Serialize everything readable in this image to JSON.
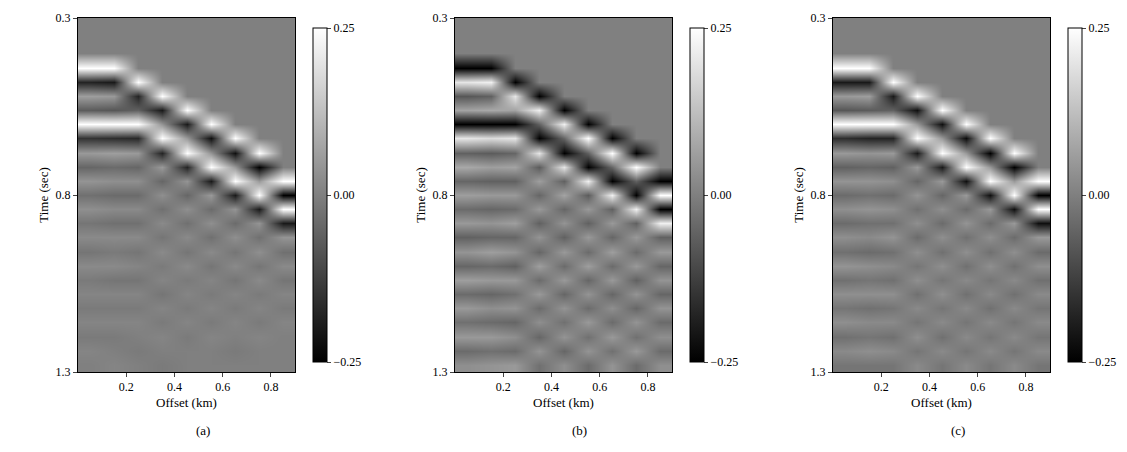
{
  "chart_data": [
    {
      "type": "heatmap",
      "caption": "(a)",
      "x_label": "Offset (km)",
      "y_label": "Time (sec)",
      "xlim": [
        0,
        0.9
      ],
      "ylim": [
        1.3,
        0.3
      ],
      "xticks": [
        0.2,
        0.4,
        0.6,
        0.8
      ],
      "yticks": [
        0.3,
        0.8,
        1.3
      ],
      "x": [
        0.05,
        0.15,
        0.25,
        0.35,
        0.45,
        0.55,
        0.65,
        0.75,
        0.85
      ],
      "y": [
        0.32,
        0.36,
        0.4,
        0.44,
        0.48,
        0.52,
        0.56,
        0.6,
        0.64,
        0.68,
        0.72,
        0.76,
        0.8,
        0.84,
        0.88,
        0.92,
        0.96,
        1.0,
        1.04,
        1.08,
        1.12,
        1.16,
        1.2,
        1.24,
        1.28
      ],
      "z": [
        [
          0,
          0,
          0,
          0.25,
          -0.18,
          0.06,
          -0.07,
          0.25,
          -0.15,
          0.05,
          -0.05,
          0.04,
          -0.03,
          0.03,
          -0.02,
          0.02,
          -0.02,
          0.02,
          -0.01,
          0.01,
          -0.01,
          0.01,
          -0.01,
          0.01,
          0
        ],
        [
          0,
          0,
          0,
          0.25,
          -0.2,
          0.05,
          -0.08,
          0.25,
          -0.16,
          0.06,
          -0.04,
          0.03,
          -0.04,
          0.02,
          -0.03,
          0.02,
          -0.01,
          0.02,
          -0.02,
          0.01,
          -0.01,
          0.01,
          -0.01,
          0,
          0.01
        ],
        [
          0,
          0,
          0,
          0,
          0.25,
          -0.18,
          -0.06,
          0.25,
          -0.17,
          0.05,
          -0.05,
          0.03,
          -0.04,
          0.02,
          -0.03,
          0.02,
          -0.02,
          0.01,
          -0.02,
          0.01,
          -0.01,
          0.01,
          0,
          -0.01,
          0
        ],
        [
          0,
          0,
          0,
          0,
          0,
          0.25,
          -0.2,
          0.04,
          0.25,
          -0.18,
          0.05,
          -0.05,
          0.03,
          -0.03,
          0.02,
          -0.02,
          0.02,
          -0.01,
          0.01,
          -0.02,
          0.01,
          -0.01,
          0.01,
          0,
          -0.01
        ],
        [
          0,
          0,
          0,
          0,
          0,
          0,
          0.25,
          -0.2,
          0.05,
          0.25,
          -0.18,
          0.04,
          -0.05,
          0.03,
          -0.03,
          0.02,
          -0.02,
          0.02,
          -0.01,
          0.01,
          -0.01,
          0.01,
          -0.01,
          0,
          0
        ],
        [
          0,
          0,
          0,
          0,
          0,
          0,
          0,
          0.25,
          -0.22,
          0.04,
          0.25,
          -0.2,
          0.05,
          -0.04,
          0.03,
          -0.03,
          0.02,
          -0.02,
          0.01,
          -0.01,
          0.01,
          -0.01,
          0.01,
          0,
          0
        ],
        [
          0,
          0,
          0,
          0,
          0,
          0,
          0,
          0,
          0.25,
          -0.22,
          0.05,
          0.25,
          -0.2,
          0.04,
          -0.04,
          0.03,
          -0.02,
          0.02,
          -0.02,
          0.01,
          -0.01,
          0.01,
          0,
          -0.01,
          0
        ],
        [
          0,
          0,
          0,
          0,
          0,
          0,
          0,
          0,
          0,
          0.25,
          -0.25,
          0.05,
          0.25,
          -0.2,
          0.04,
          -0.03,
          0.03,
          -0.02,
          0.02,
          -0.01,
          0.01,
          -0.01,
          0.01,
          0,
          0
        ],
        [
          0,
          0,
          0,
          0,
          0,
          0,
          0,
          0,
          0,
          0,
          0,
          0.25,
          -0.25,
          0.25,
          -0.2,
          0.04,
          -0.03,
          0.02,
          -0.02,
          0.01,
          -0.01,
          0.01,
          0,
          0,
          0
        ]
      ],
      "color_range": [
        -0.25,
        0.25
      ],
      "color_ticks": [
        {
          "value": -0.25,
          "label": "−0.25"
        },
        {
          "value": 0,
          "label": "0.00"
        },
        0.25
      ]
    },
    {
      "type": "heatmap",
      "caption": "(b)",
      "x_label": "Offset (km)",
      "y_label": "Time (sec)",
      "xlim": [
        0,
        0.9
      ],
      "ylim": [
        1.3,
        0.3
      ],
      "xticks": [
        0.2,
        0.4,
        0.6,
        0.8
      ],
      "yticks": [
        0.3,
        0.8,
        1.3
      ],
      "x": [
        0.05,
        0.15,
        0.25,
        0.35,
        0.45,
        0.55,
        0.65,
        0.75,
        0.85
      ],
      "y": [
        0.32,
        0.36,
        0.4,
        0.44,
        0.48,
        0.52,
        0.56,
        0.6,
        0.64,
        0.68,
        0.72,
        0.76,
        0.8,
        0.84,
        0.88,
        0.92,
        0.96,
        1.0,
        1.04,
        1.08,
        1.12,
        1.16,
        1.2,
        1.24,
        1.28
      ],
      "z": [
        [
          0,
          0,
          0,
          -0.25,
          0.2,
          -0.08,
          0.07,
          -0.25,
          0.2,
          -0.06,
          0.08,
          -0.05,
          0.06,
          -0.04,
          0.05,
          -0.06,
          0.04,
          -0.05,
          0.06,
          -0.04,
          0.05,
          -0.03,
          0.05,
          -0.04,
          0.03
        ],
        [
          0,
          0,
          0,
          -0.25,
          0.22,
          -0.06,
          0.08,
          -0.25,
          0.18,
          -0.07,
          0.06,
          -0.06,
          0.05,
          -0.05,
          0.04,
          -0.05,
          0.06,
          -0.04,
          0.05,
          -0.05,
          0.03,
          -0.04,
          0.05,
          -0.03,
          0.04
        ],
        [
          0,
          0,
          0,
          0,
          -0.25,
          0.2,
          0.07,
          -0.25,
          0.2,
          -0.05,
          0.07,
          -0.06,
          0.05,
          -0.04,
          0.06,
          -0.05,
          0.04,
          -0.06,
          0.05,
          -0.03,
          0.04,
          -0.05,
          0.03,
          -0.04,
          0.05
        ],
        [
          0,
          0,
          0,
          0,
          0,
          -0.25,
          0.22,
          -0.06,
          -0.25,
          0.2,
          -0.07,
          0.06,
          -0.05,
          0.05,
          -0.06,
          0.04,
          -0.05,
          0.06,
          -0.04,
          0.05,
          -0.04,
          0.03,
          -0.05,
          0.04,
          -0.03
        ],
        [
          0,
          0,
          0,
          0,
          0,
          0,
          -0.25,
          0.22,
          -0.05,
          -0.25,
          0.2,
          -0.06,
          0.07,
          -0.05,
          0.04,
          -0.06,
          0.05,
          -0.04,
          0.05,
          -0.05,
          0.04,
          -0.03,
          0.04,
          -0.05,
          0.03
        ],
        [
          0,
          0,
          0,
          0,
          0,
          0,
          0,
          -0.25,
          0.25,
          -0.06,
          -0.25,
          0.22,
          -0.07,
          0.05,
          -0.06,
          0.05,
          -0.04,
          0.06,
          -0.05,
          0.04,
          -0.04,
          0.05,
          -0.03,
          0.04,
          -0.04
        ],
        [
          0,
          0,
          0,
          0,
          0,
          0,
          0,
          0,
          -0.25,
          0.25,
          -0.05,
          -0.25,
          0.22,
          -0.06,
          0.05,
          -0.05,
          0.06,
          -0.04,
          0.05,
          -0.05,
          0.03,
          -0.04,
          0.05,
          -0.03,
          0.04
        ],
        [
          0,
          0,
          0,
          0,
          0,
          0,
          0,
          0,
          0,
          -0.25,
          0.25,
          -0.06,
          -0.25,
          0.22,
          -0.06,
          0.05,
          -0.04,
          0.05,
          -0.06,
          0.04,
          -0.05,
          0.04,
          -0.03,
          0.05,
          -0.04
        ],
        [
          0,
          0,
          0,
          0,
          0,
          0,
          0,
          0,
          0,
          0,
          0,
          -0.25,
          0.25,
          -0.25,
          0.22,
          -0.06,
          0.05,
          -0.05,
          0.04,
          -0.05,
          0.04,
          -0.04,
          0.03,
          -0.04,
          0.03
        ]
      ],
      "color_range": [
        -0.25,
        0.25
      ],
      "color_ticks": [
        {
          "value": -0.25,
          "label": "−0.25"
        },
        {
          "value": 0,
          "label": "0.00"
        },
        0.25
      ]
    },
    {
      "type": "heatmap",
      "caption": "(c)",
      "x_label": "Offset (km)",
      "y_label": "Time (sec)",
      "xlim": [
        0,
        0.9
      ],
      "ylim": [
        1.3,
        0.3
      ],
      "xticks": [
        0.2,
        0.4,
        0.6,
        0.8
      ],
      "yticks": [
        0.3,
        0.8,
        1.3
      ],
      "x": [
        0.05,
        0.15,
        0.25,
        0.35,
        0.45,
        0.55,
        0.65,
        0.75,
        0.85
      ],
      "y": [
        0.32,
        0.36,
        0.4,
        0.44,
        0.48,
        0.52,
        0.56,
        0.6,
        0.64,
        0.68,
        0.72,
        0.76,
        0.8,
        0.84,
        0.88,
        0.92,
        0.96,
        1.0,
        1.04,
        1.08,
        1.12,
        1.16,
        1.2,
        1.24,
        1.28
      ],
      "z": [
        [
          0,
          0,
          0,
          0.25,
          -0.2,
          0.05,
          -0.08,
          0.25,
          -0.16,
          0.05,
          -0.06,
          0.04,
          -0.04,
          0.03,
          -0.04,
          0.03,
          -0.03,
          0.04,
          -0.03,
          0.03,
          -0.02,
          0.03,
          -0.03,
          0.02,
          -0.02
        ],
        [
          0,
          0,
          0,
          0.25,
          -0.2,
          0.06,
          -0.07,
          0.25,
          -0.18,
          0.04,
          -0.05,
          0.04,
          -0.03,
          0.04,
          -0.03,
          0.02,
          -0.04,
          0.03,
          -0.02,
          0.03,
          -0.03,
          0.02,
          -0.02,
          0.03,
          -0.02
        ],
        [
          0,
          0,
          0,
          0,
          0.25,
          -0.2,
          -0.06,
          0.25,
          -0.18,
          0.05,
          -0.06,
          0.03,
          -0.04,
          0.03,
          -0.03,
          0.04,
          -0.03,
          0.02,
          -0.03,
          0.03,
          -0.02,
          0.02,
          -0.03,
          0.02,
          -0.02
        ],
        [
          0,
          0,
          0,
          0,
          0,
          0.25,
          -0.22,
          0.05,
          0.25,
          -0.2,
          0.05,
          -0.05,
          0.04,
          -0.03,
          0.03,
          -0.04,
          0.03,
          -0.02,
          0.03,
          -0.03,
          0.02,
          -0.02,
          0.03,
          -0.02,
          0.02
        ],
        [
          0,
          0,
          0,
          0,
          0,
          0,
          0.25,
          -0.22,
          0.05,
          0.25,
          -0.2,
          0.05,
          -0.05,
          0.03,
          -0.04,
          0.03,
          -0.03,
          0.03,
          -0.02,
          0.03,
          -0.02,
          0.02,
          -0.03,
          0.02,
          -0.02
        ],
        [
          0,
          0,
          0,
          0,
          0,
          0,
          0,
          0.25,
          -0.23,
          0.05,
          0.25,
          -0.22,
          0.05,
          -0.04,
          0.04,
          -0.03,
          0.03,
          -0.03,
          0.02,
          -0.03,
          0.02,
          -0.02,
          0.02,
          -0.02,
          0.02
        ],
        [
          0,
          0,
          0,
          0,
          0,
          0,
          0,
          0,
          0.25,
          -0.25,
          0.05,
          0.25,
          -0.22,
          0.05,
          -0.04,
          0.03,
          -0.03,
          0.03,
          -0.02,
          0.02,
          -0.03,
          0.02,
          -0.02,
          0.02,
          -0.02
        ],
        [
          0,
          0,
          0,
          0,
          0,
          0,
          0,
          0,
          0,
          0.25,
          -0.25,
          0.05,
          0.25,
          -0.22,
          0.05,
          -0.04,
          0.03,
          -0.03,
          0.02,
          -0.03,
          0.02,
          -0.02,
          0.02,
          -0.02,
          0.02
        ],
        [
          0,
          0,
          0,
          0,
          0,
          0,
          0,
          0,
          0,
          0,
          0,
          0.25,
          -0.25,
          0.25,
          -0.22,
          0.05,
          -0.04,
          0.03,
          -0.03,
          0.02,
          -0.02,
          0.02,
          -0.02,
          0.02,
          -0.02
        ]
      ],
      "color_range": [
        -0.25,
        0.25
      ],
      "color_ticks": [
        {
          "value": -0.25,
          "label": "−0.25"
        },
        {
          "value": 0,
          "label": "0.00"
        },
        0.25
      ]
    }
  ]
}
